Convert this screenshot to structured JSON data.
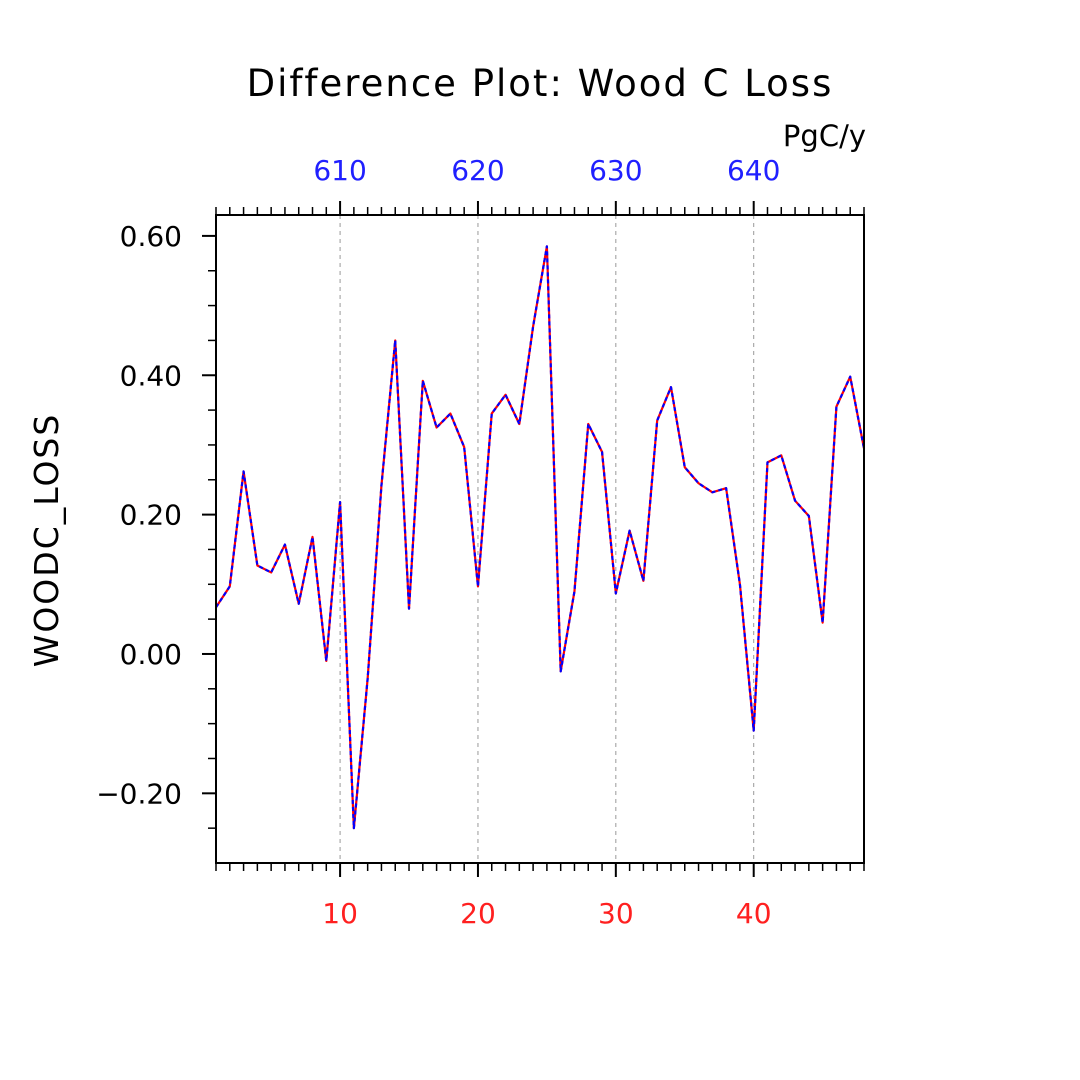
{
  "colors": {
    "background": "#ffffff",
    "axis": "#000000",
    "top_axis": "#2020ff",
    "bottom_axis": "#ff2020",
    "series_a": "#ff0000",
    "series_b": "#0000ff",
    "grid": "#999999"
  },
  "chart_data": {
    "type": "line",
    "title": "Difference Plot: Wood C Loss",
    "units": "PgC/y",
    "ylabel": "WOODC_LOSS",
    "xlabel": "",
    "xlim": [
      1,
      48
    ],
    "ylim": [
      -0.3,
      0.63
    ],
    "y_ticks": [
      -0.2,
      0.0,
      0.2,
      0.4,
      0.6
    ],
    "y_tick_labels": [
      "−0.20",
      "0.00",
      "0.20",
      "0.40",
      "0.60"
    ],
    "x_ticks_bottom": [
      10,
      20,
      30,
      40
    ],
    "x_tick_labels_bottom": [
      "10",
      "20",
      "30",
      "40"
    ],
    "x_ticks_top": [
      10,
      20,
      30,
      40
    ],
    "x_tick_labels_top": [
      "610",
      "620",
      "630",
      "640"
    ],
    "grid": "vertical dashed at major x ticks",
    "series": [
      {
        "x": [
          1,
          2,
          3,
          4,
          5,
          6,
          7,
          8,
          9,
          10,
          11,
          12,
          13,
          14,
          15,
          16,
          17,
          18,
          19,
          20,
          21,
          22,
          23,
          24,
          25,
          26,
          27,
          28,
          29,
          30,
          31,
          32,
          33,
          34,
          35,
          36,
          37,
          38,
          39,
          40,
          41,
          42,
          43,
          44,
          45,
          46,
          47,
          48
        ],
        "values": [
          0.067,
          0.097,
          0.262,
          0.127,
          0.117,
          0.157,
          0.072,
          0.168,
          -0.01,
          0.218,
          -0.25,
          -0.035,
          0.242,
          0.45,
          0.065,
          0.392,
          0.325,
          0.345,
          0.297,
          0.097,
          0.345,
          0.372,
          0.33,
          0.47,
          0.585,
          -0.025,
          0.09,
          0.33,
          0.29,
          0.087,
          0.177,
          0.105,
          0.335,
          0.383,
          0.268,
          0.245,
          0.232,
          0.238,
          0.1,
          -0.11,
          0.275,
          0.285,
          0.22,
          0.198,
          0.045,
          0.355,
          0.398,
          0.295
        ]
      }
    ]
  }
}
